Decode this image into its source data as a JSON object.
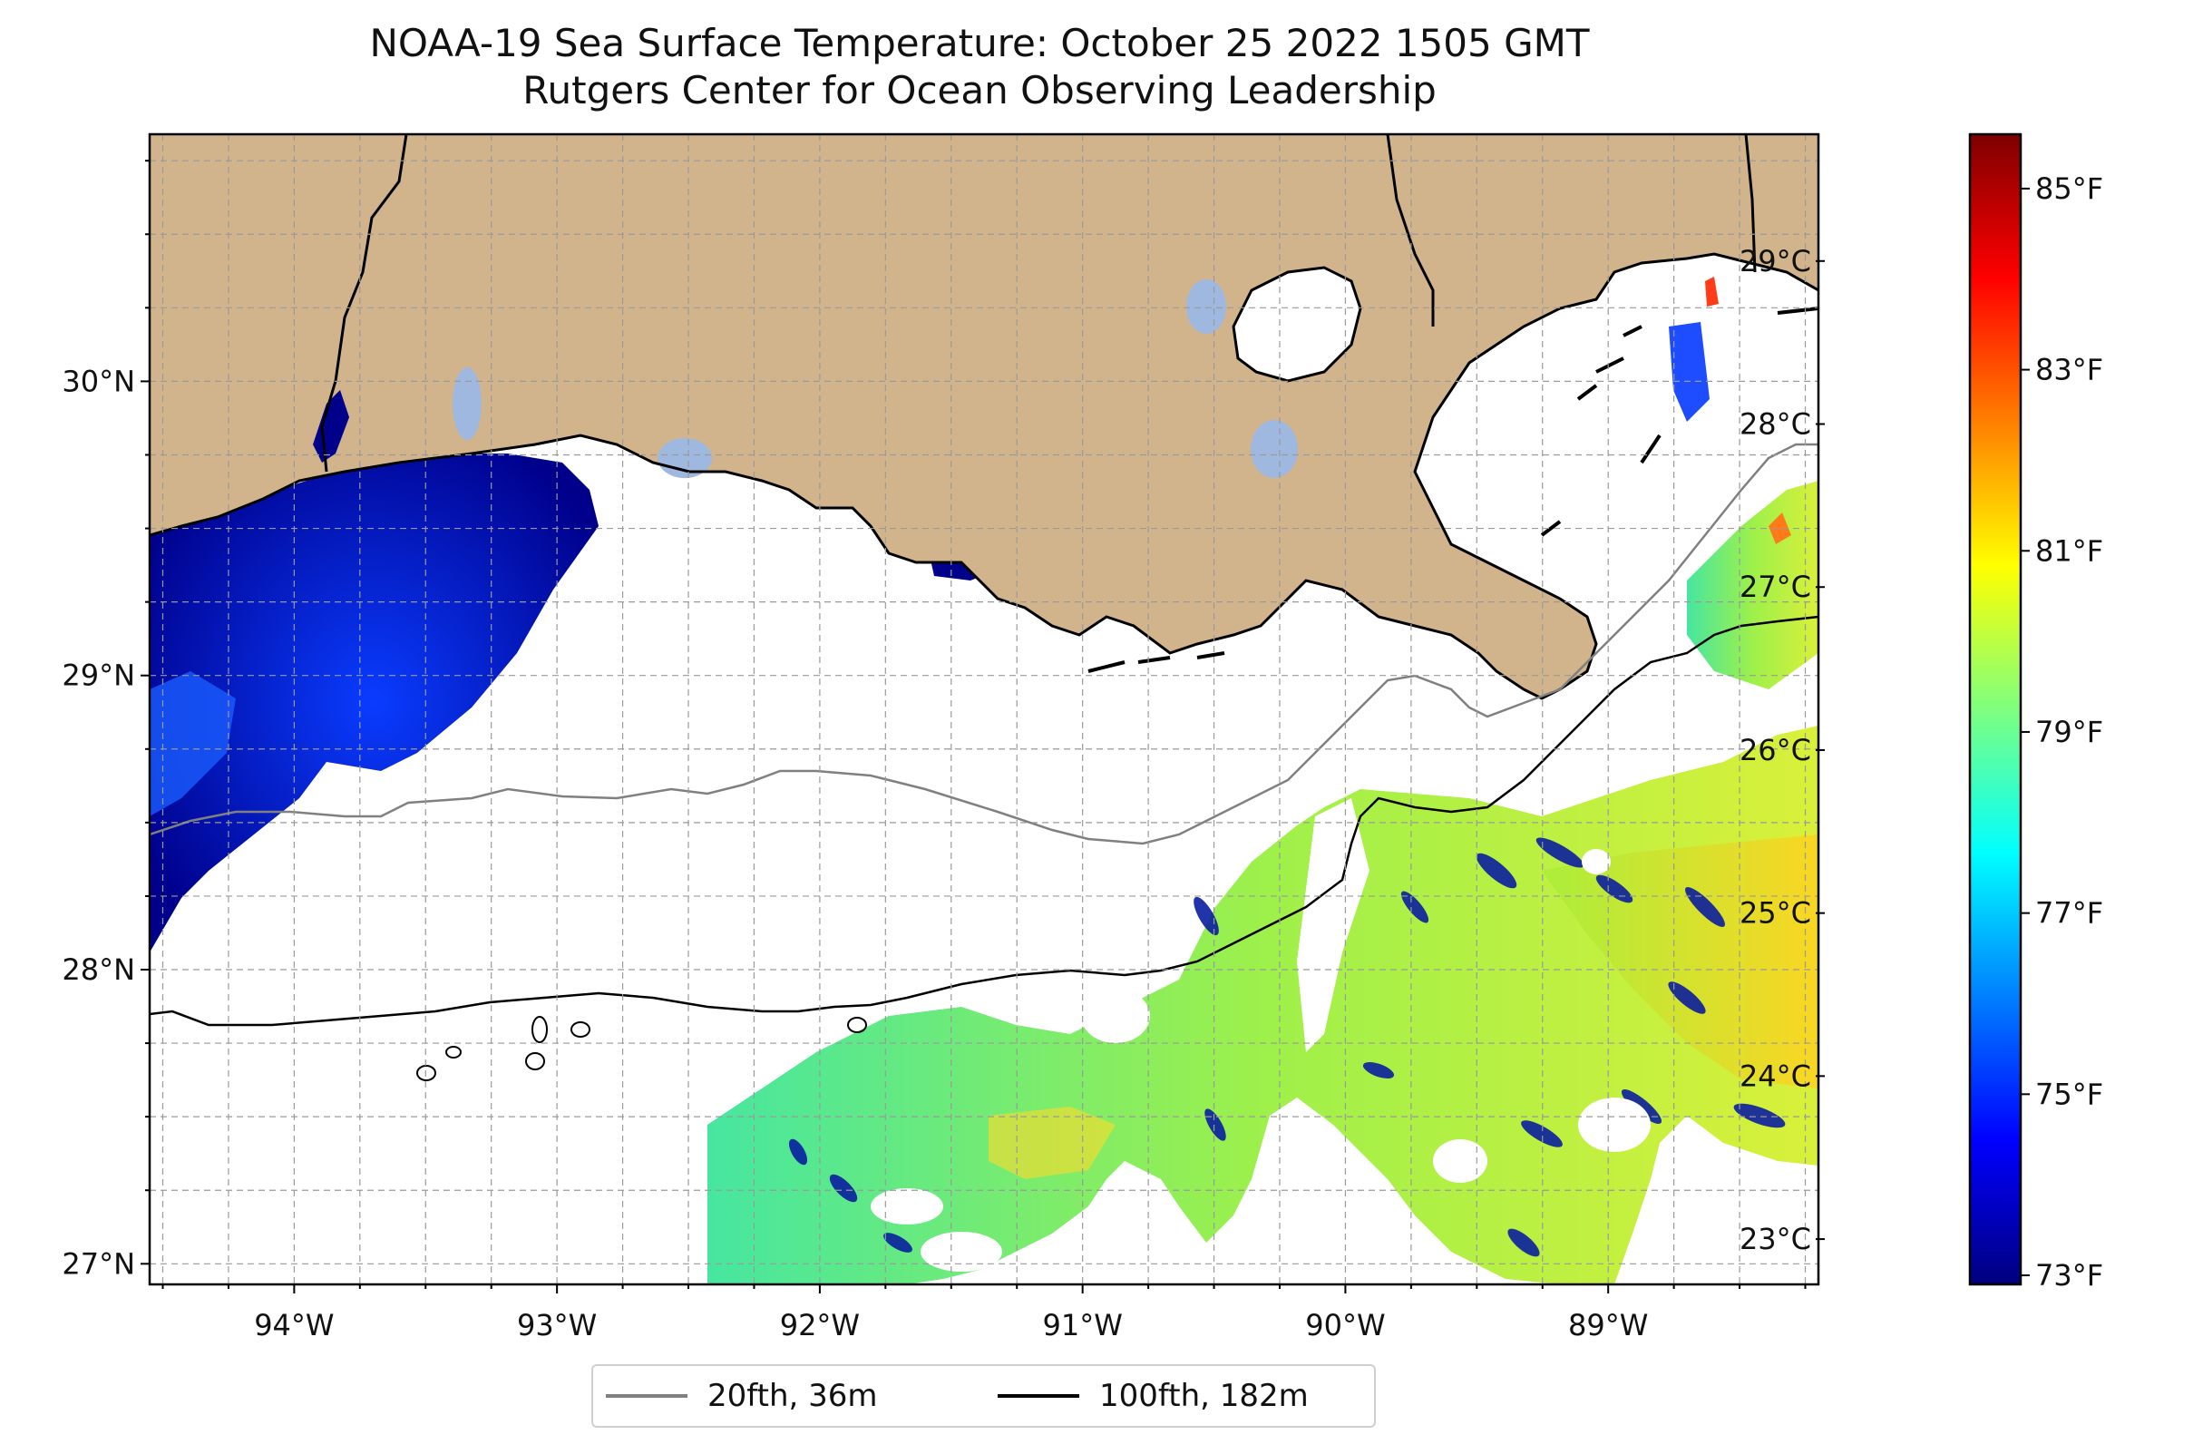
{
  "title": {
    "line1": "NOAA-19 Sea Surface Temperature: October 25 2022 1505 GMT",
    "line2": "Rutgers Center for Ocean Observing Leadership"
  },
  "map": {
    "extent": {
      "lon_min": -94.55,
      "lon_max": -88.2,
      "lat_min": 26.93,
      "lat_max": 30.84
    },
    "lat_ticks": [
      {
        "value": 30,
        "label": "30°N"
      },
      {
        "value": 29,
        "label": "29°N"
      },
      {
        "value": 28,
        "label": "28°N"
      },
      {
        "value": 27,
        "label": "27°N"
      }
    ],
    "lon_ticks": [
      {
        "value": -94,
        "label": "94°W"
      },
      {
        "value": -93,
        "label": "93°W"
      },
      {
        "value": -92,
        "label": "92°W"
      },
      {
        "value": -91,
        "label": "91°W"
      },
      {
        "value": -90,
        "label": "90°W"
      },
      {
        "value": -89,
        "label": "89°W"
      }
    ],
    "land_color": "#d2b48c",
    "lake_color": "#9fb8e0",
    "ocean_no_data_color": "#ffffff"
  },
  "colorbar": {
    "colors": [
      "#00007f",
      "#0000ff",
      "#007fff",
      "#00ffff",
      "#7fff7f",
      "#ffff00",
      "#ff7f00",
      "#ff0000",
      "#7f0000"
    ],
    "fahrenheit_ticks": [
      {
        "value": 73,
        "label": "73°F"
      },
      {
        "value": 75,
        "label": "75°F"
      },
      {
        "value": 77,
        "label": "77°F"
      },
      {
        "value": 79,
        "label": "79°F"
      },
      {
        "value": 81,
        "label": "81°F"
      },
      {
        "value": 83,
        "label": "83°F"
      },
      {
        "value": 85,
        "label": "85°F"
      }
    ],
    "celsius_ticks": [
      {
        "value": 23,
        "label": "23°C"
      },
      {
        "value": 24,
        "label": "24°C"
      },
      {
        "value": 25,
        "label": "25°C"
      },
      {
        "value": 26,
        "label": "26°C"
      },
      {
        "value": 27,
        "label": "27°C"
      },
      {
        "value": 28,
        "label": "28°C"
      },
      {
        "value": 29,
        "label": "29°C"
      }
    ],
    "range_f": [
      72.9,
      85.6
    ]
  },
  "legend": {
    "entries": [
      {
        "label": "20fth, 36m",
        "color": "#808080"
      },
      {
        "label": "100fth, 182m",
        "color": "#000000"
      }
    ]
  }
}
